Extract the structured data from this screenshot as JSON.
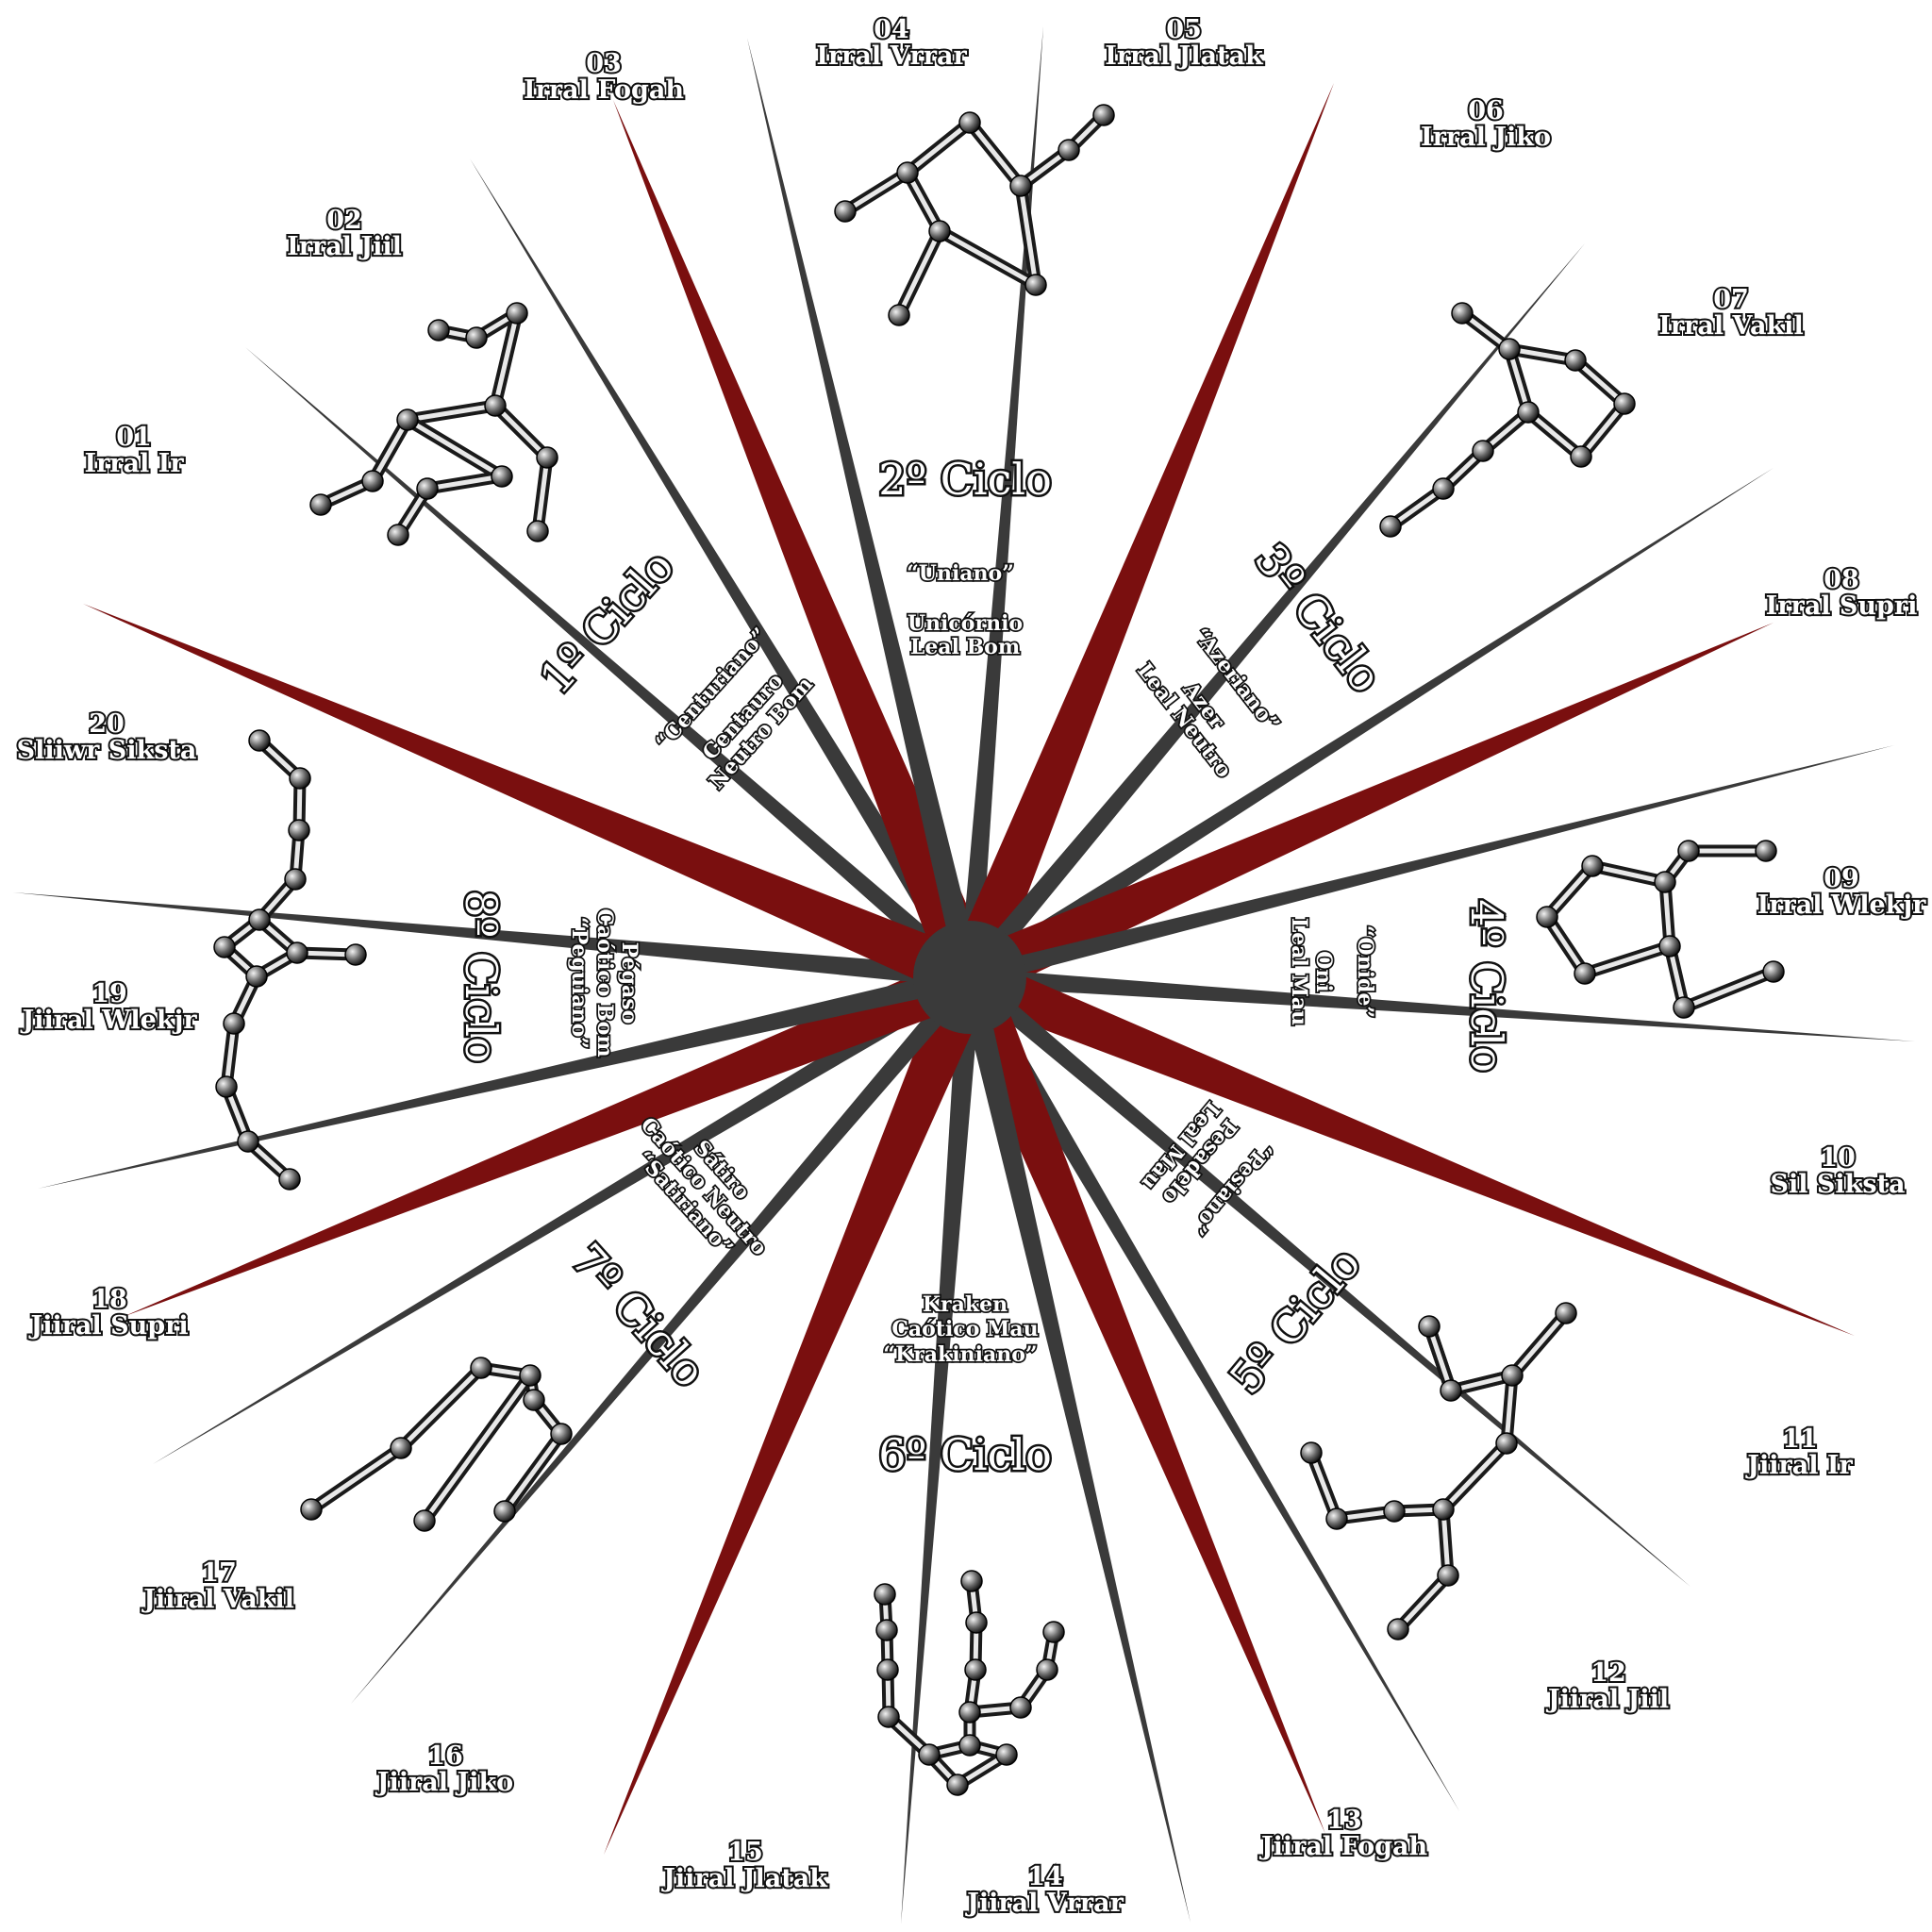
{
  "colors": {
    "ray_dark": "#3a3a3a",
    "ray_red": "#7a0f0f",
    "hub": "#3a3a3a"
  },
  "signs": [
    {
      "num": "01",
      "name": "Irral Ir"
    },
    {
      "num": "02",
      "name": "Irral Jiil"
    },
    {
      "num": "03",
      "name": "Irral Fogah"
    },
    {
      "num": "04",
      "name": "Irral Vrrar"
    },
    {
      "num": "05",
      "name": "Irral Jlatak"
    },
    {
      "num": "06",
      "name": "Irral Jiko"
    },
    {
      "num": "07",
      "name": "Irral Vakil"
    },
    {
      "num": "08",
      "name": "Irral Supri"
    },
    {
      "num": "09",
      "name": "Irral Wlekjr"
    },
    {
      "num": "10",
      "name": "Sil Siksta"
    },
    {
      "num": "11",
      "name": "Jiiral Ir"
    },
    {
      "num": "12",
      "name": "Jiiral Jiil"
    },
    {
      "num": "13",
      "name": "Jiiral Fogah"
    },
    {
      "num": "14",
      "name": "Jiiral Vrrar"
    },
    {
      "num": "15",
      "name": "Jiiral Jlatak"
    },
    {
      "num": "16",
      "name": "Jiiral Jiko"
    },
    {
      "num": "17",
      "name": "Jiiral Vakil"
    },
    {
      "num": "18",
      "name": "Jiiral Supri"
    },
    {
      "num": "19",
      "name": "Jiiral Wlekjr"
    },
    {
      "num": "20",
      "name": "Sliiwr Siksta"
    }
  ],
  "cycles": [
    {
      "title": "1º Ciclo",
      "creature": "Centauro",
      "alignment": "Neutro Bom",
      "demonym": "“Centuriano”"
    },
    {
      "title": "2º Ciclo",
      "creature": "Unicórnio",
      "alignment": "Leal Bom",
      "demonym": "“Uniano”"
    },
    {
      "title": "3º Ciclo",
      "creature": "Azer",
      "alignment": "Leal Neutro",
      "demonym": "“Azeriano”"
    },
    {
      "title": "4º Ciclo",
      "creature": "Oni",
      "alignment": "Leal Mau",
      "demonym": "“Onide”"
    },
    {
      "title": "5º Ciclo",
      "creature": "Pesadelo",
      "alignment": "Leal Mau",
      "demonym": "“Pesiano”"
    },
    {
      "title": "6º Ciclo",
      "creature": "Kraken",
      "alignment": "Caótico Mau",
      "demonym": "“Krakiniano”"
    },
    {
      "title": "7º Ciclo",
      "creature": "Sátiro",
      "alignment": "Caótico Neutro",
      "demonym": "“Satiriano”"
    },
    {
      "title": "8º Ciclo",
      "creature": "Pégaso",
      "alignment": "Caótico Bom",
      "demonym": "“Peguiano”"
    }
  ]
}
